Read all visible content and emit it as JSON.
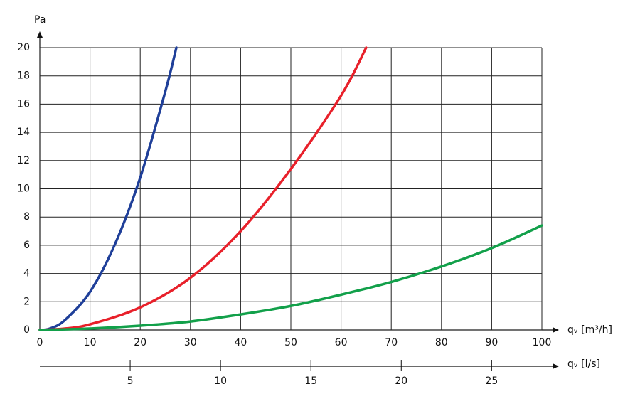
{
  "chart_data": {
    "type": "line",
    "y_label": "Pa",
    "x_label": "qᵥ [m³/h]",
    "x2_label": "qᵥ [l/s]",
    "xlim": [
      0,
      100
    ],
    "xticks": [
      0,
      10,
      20,
      30,
      40,
      50,
      60,
      70,
      80,
      90,
      100
    ],
    "ylim": [
      0,
      20
    ],
    "yticks": [
      0,
      2,
      4,
      6,
      8,
      10,
      12,
      14,
      16,
      18,
      20
    ],
    "x2lim": [
      0,
      27.78
    ],
    "x2ticks": [
      5,
      10,
      15,
      20,
      25
    ],
    "grid": true,
    "series": [
      {
        "color": "#1f3f99",
        "x": [
          0,
          2,
          5,
          10,
          15,
          20,
          25,
          27.2
        ],
        "values": [
          0,
          0.1,
          0.7,
          2.7,
          6.1,
          10.8,
          16.9,
          20
        ]
      },
      {
        "color": "#e8202a",
        "x": [
          0,
          5,
          10,
          20,
          30,
          40,
          50,
          60,
          65
        ],
        "values": [
          0,
          0.1,
          0.4,
          1.6,
          3.7,
          7.0,
          11.4,
          16.6,
          20
        ]
      },
      {
        "color": "#12a04a",
        "x": [
          0,
          10,
          20,
          30,
          40,
          50,
          60,
          70,
          80,
          90,
          100
        ],
        "values": [
          0,
          0.1,
          0.3,
          0.6,
          1.1,
          1.7,
          2.5,
          3.4,
          4.5,
          5.8,
          7.4
        ]
      }
    ]
  }
}
